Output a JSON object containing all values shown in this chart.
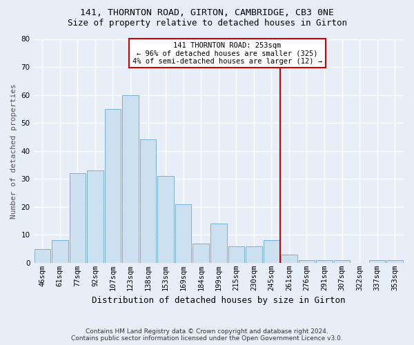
{
  "title": "141, THORNTON ROAD, GIRTON, CAMBRIDGE, CB3 0NE",
  "subtitle": "Size of property relative to detached houses in Girton",
  "xlabel": "Distribution of detached houses by size in Girton",
  "ylabel": "Number of detached properties",
  "bar_color": "#cce0f0",
  "bar_edge_color": "#7ab0d0",
  "background_color": "#e8eef8",
  "plot_bg_color": "#e8eef8",
  "categories": [
    "46sqm",
    "61sqm",
    "77sqm",
    "92sqm",
    "107sqm",
    "123sqm",
    "138sqm",
    "153sqm",
    "169sqm",
    "184sqm",
    "199sqm",
    "215sqm",
    "230sqm",
    "245sqm",
    "261sqm",
    "276sqm",
    "291sqm",
    "307sqm",
    "322sqm",
    "337sqm",
    "353sqm"
  ],
  "values": [
    5,
    8,
    32,
    33,
    55,
    60,
    44,
    31,
    21,
    7,
    14,
    6,
    6,
    8,
    3,
    1,
    1,
    1,
    0,
    1,
    1
  ],
  "ylim": [
    0,
    80
  ],
  "yticks": [
    0,
    10,
    20,
    30,
    40,
    50,
    60,
    70,
    80
  ],
  "vline_index": 13.5,
  "vline_color": "#cc0000",
  "annotation_title": "141 THORNTON ROAD: 253sqm",
  "annotation_line1": "← 96% of detached houses are smaller (325)",
  "annotation_line2": "4% of semi-detached houses are larger (12) →",
  "annotation_box_color": "#ffffff",
  "annotation_border_color": "#cc0000",
  "footer_line1": "Contains HM Land Registry data © Crown copyright and database right 2024.",
  "footer_line2": "Contains public sector information licensed under the Open Government Licence v3.0.",
  "title_fontsize": 9.5,
  "subtitle_fontsize": 9,
  "ylabel_fontsize": 8,
  "xlabel_fontsize": 9,
  "tick_fontsize": 7.5,
  "footer_fontsize": 6.5
}
